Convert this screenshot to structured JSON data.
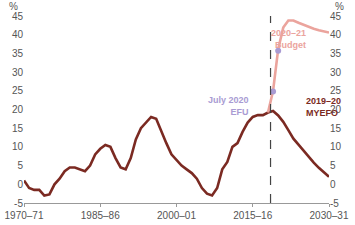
{
  "chart_data": {
    "type": "line",
    "ylabel": "%",
    "x": [
      1970,
      1971,
      1972,
      1973,
      1974,
      1975,
      1976,
      1977,
      1978,
      1979,
      1980,
      1981,
      1982,
      1983,
      1984,
      1985,
      1986,
      1987,
      1988,
      1989,
      1990,
      1991,
      1992,
      1993,
      1994,
      1995,
      1996,
      1997,
      1998,
      1999,
      2000,
      2001,
      2002,
      2003,
      2004,
      2005,
      2006,
      2007,
      2008,
      2009,
      2010,
      2011,
      2012,
      2013,
      2014,
      2015,
      2016,
      2017,
      2018,
      2019,
      2020,
      2021,
      2022,
      2023,
      2024,
      2025,
      2026,
      2027,
      2028,
      2029,
      2030
    ],
    "xlim": [
      1970,
      2030
    ],
    "xticks": [
      {
        "value": 1970,
        "label": "1970–71"
      },
      {
        "value": 1985,
        "label": "1985–86"
      },
      {
        "value": 2000,
        "label": "2000–01"
      },
      {
        "value": 2015,
        "label": "2015–16"
      },
      {
        "value": 2030,
        "label": "2030–31"
      }
    ],
    "ylim": [
      -5,
      45
    ],
    "yticks": [
      -5,
      0,
      5,
      10,
      15,
      20,
      25,
      30,
      35,
      40,
      45
    ],
    "grid": false,
    "divider_x": 2018.5,
    "series": [
      {
        "name": "2019–20\nMYEFO",
        "color": "#7b2a22",
        "marker": "none",
        "values": [
          1,
          -1,
          -1.5,
          -1.5,
          -3,
          -2.7,
          0,
          1.5,
          3.5,
          4.5,
          4.5,
          4,
          3.5,
          5,
          8,
          9.5,
          10.5,
          10,
          7,
          4.5,
          4,
          7,
          12,
          15,
          16.5,
          18,
          17.5,
          14,
          11,
          8,
          6.5,
          5,
          4,
          3,
          1.5,
          -1,
          -2.5,
          -3,
          -1,
          4,
          6,
          10,
          11,
          14,
          16.5,
          18,
          18.5,
          18.5,
          19.2,
          19.6,
          18.4,
          16.7,
          14.5,
          12.2,
          10.6,
          8.9,
          7.4,
          5.8,
          4.4,
          3.1,
          2.0
        ]
      },
      {
        "name": "2020–21\nBudget",
        "color": "#eba49d",
        "marker": "none",
        "values": [
          null,
          null,
          null,
          null,
          null,
          null,
          null,
          null,
          null,
          null,
          null,
          null,
          null,
          null,
          null,
          null,
          null,
          null,
          null,
          null,
          null,
          null,
          null,
          null,
          null,
          null,
          null,
          null,
          null,
          null,
          null,
          null,
          null,
          null,
          null,
          null,
          null,
          null,
          null,
          null,
          null,
          null,
          null,
          null,
          null,
          null,
          null,
          null,
          19.2,
          25.0,
          36.1,
          41.9,
          43.8,
          43.8,
          43.2,
          42.6,
          42.0,
          41.6,
          41.2,
          40.8,
          40.6
        ]
      },
      {
        "name": "July 2020\nEFU",
        "color": "#a99bd3",
        "marker": "circle",
        "values": [
          null,
          null,
          null,
          null,
          null,
          null,
          null,
          null,
          null,
          null,
          null,
          null,
          null,
          null,
          null,
          null,
          null,
          null,
          null,
          null,
          null,
          null,
          null,
          null,
          null,
          null,
          null,
          null,
          null,
          null,
          null,
          null,
          null,
          null,
          null,
          null,
          null,
          null,
          null,
          null,
          null,
          null,
          null,
          null,
          null,
          null,
          null,
          null,
          null,
          24.8,
          35.7,
          null,
          null,
          null,
          null,
          null,
          null,
          null,
          null,
          null,
          null
        ]
      }
    ]
  }
}
